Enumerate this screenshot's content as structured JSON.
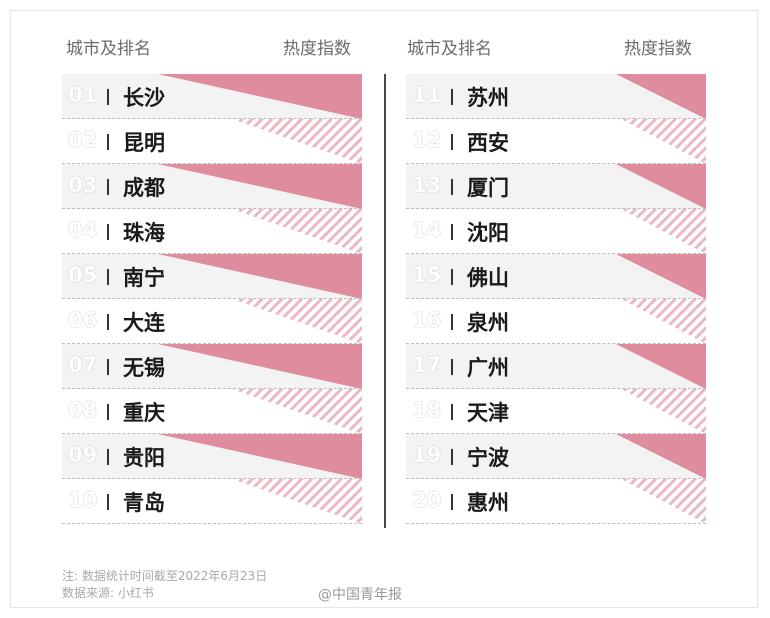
{
  "headers": {
    "left_col": "城市及排名",
    "left_val": "热度指数",
    "right_col": "城市及排名",
    "right_val": "热度指数"
  },
  "colors": {
    "pink": "#df8c9e",
    "stripe": "#ebb8c4"
  },
  "chart_data": {
    "type": "table",
    "columns": [
      "城市及排名",
      "热度指数"
    ],
    "rows": [
      {
        "rank": "01",
        "city": "长沙"
      },
      {
        "rank": "02",
        "city": "昆明"
      },
      {
        "rank": "03",
        "city": "成都"
      },
      {
        "rank": "04",
        "city": "珠海"
      },
      {
        "rank": "05",
        "city": "南宁"
      },
      {
        "rank": "06",
        "city": "大连"
      },
      {
        "rank": "07",
        "city": "无锡"
      },
      {
        "rank": "08",
        "city": "重庆"
      },
      {
        "rank": "09",
        "city": "贵阳"
      },
      {
        "rank": "10",
        "city": "青岛"
      },
      {
        "rank": "11",
        "city": "苏州"
      },
      {
        "rank": "12",
        "city": "西安"
      },
      {
        "rank": "13",
        "city": "厦门"
      },
      {
        "rank": "14",
        "city": "沈阳"
      },
      {
        "rank": "15",
        "city": "佛山"
      },
      {
        "rank": "16",
        "city": "泉州"
      },
      {
        "rank": "17",
        "city": "广州"
      },
      {
        "rank": "18",
        "city": "天津"
      },
      {
        "rank": "19",
        "city": "宁波"
      },
      {
        "rank": "20",
        "city": "惠州"
      }
    ]
  },
  "footnote": {
    "line1": "注: 数据统计时间截至2022年6月23日",
    "line2": "数据来源: 小红书"
  },
  "watermark": "@中国青年报"
}
